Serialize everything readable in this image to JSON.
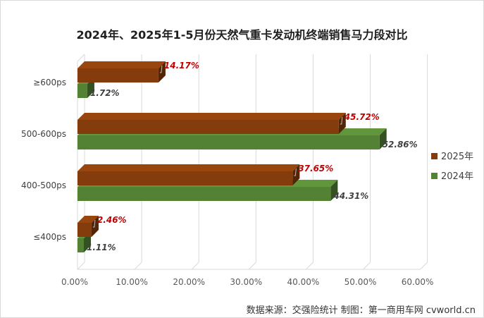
{
  "chart_data": {
    "type": "bar",
    "orientation": "horizontal",
    "title": "2024年、2025年1-5月份天然气重卡发动机终端销售马力段对比",
    "categories": [
      "≥600ps",
      "500-600ps",
      "400-500ps",
      "≤400ps"
    ],
    "series": [
      {
        "name": "2025年",
        "values": [
          14.17,
          45.72,
          37.65,
          2.46
        ],
        "labels": [
          "14.17%",
          "45.72%",
          "37.65%",
          "2.46%"
        ],
        "color": "#843c0c"
      },
      {
        "name": "2024年",
        "values": [
          1.72,
          52.86,
          44.31,
          1.11
        ],
        "labels": [
          "1.72%",
          "52.86%",
          "44.31%",
          "1.11%"
        ],
        "color": "#548235"
      }
    ],
    "x_ticks": [
      "0.00%",
      "10.00%",
      "20.00%",
      "30.00%",
      "40.00%",
      "50.00%",
      "60.00%"
    ],
    "xlim": [
      0,
      60
    ],
    "grid": true,
    "legend_position": "right",
    "label_colors": {
      "2025年": "#c00000",
      "2024年": "#404040"
    }
  },
  "footer": {
    "source": "数据来源：交强险统计    制图：第一商用车网 cvworld.cn"
  }
}
